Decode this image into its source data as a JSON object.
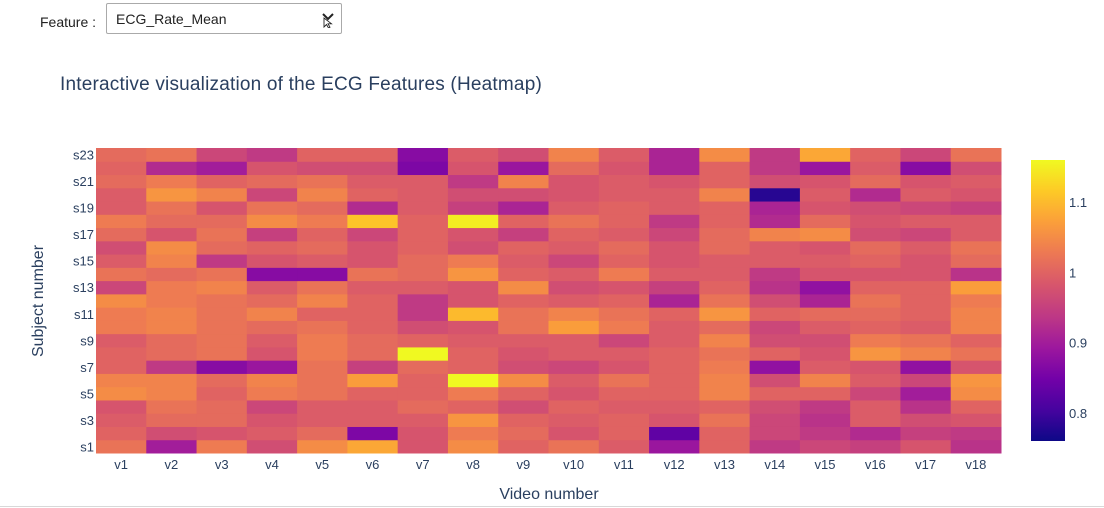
{
  "controls": {
    "feature_label": "Feature :",
    "feature_value": "ECG_Rate_Mean"
  },
  "chart_data": {
    "type": "heatmap",
    "title": "Interactive visualization of the ECG Features (Heatmap)",
    "xlabel": "Video number",
    "ylabel": "Subject number",
    "x": [
      "v1",
      "v2",
      "v3",
      "v4",
      "v5",
      "v6",
      "v7",
      "v8",
      "v9",
      "v10",
      "v11",
      "v12",
      "v13",
      "v14",
      "v15",
      "v16",
      "v17",
      "v18"
    ],
    "y": [
      "s1",
      "s2",
      "s3",
      "s4",
      "s5",
      "s6",
      "s7",
      "s8",
      "s9",
      "s10",
      "s11",
      "s12",
      "s13",
      "s14",
      "s15",
      "s16",
      "s17",
      "s18",
      "s19",
      "s20",
      "s21",
      "s22",
      "s23"
    ],
    "y_tick_labels": [
      "s1",
      "s3",
      "s5",
      "s7",
      "s9",
      "s11",
      "s13",
      "s15",
      "s17",
      "s19",
      "s21",
      "s23"
    ],
    "colorscale": "plasma",
    "zmin": 0.76,
    "zmax": 1.16,
    "colorbar_ticks": [
      0.8,
      0.9,
      1,
      1.1
    ],
    "colorbar_tick_labels": [
      "0.8",
      "0.9",
      "1",
      "1.1"
    ],
    "z": [
      [
        1.02,
        0.9,
        1.03,
        0.97,
        1.05,
        1.08,
        0.98,
        1.05,
        1.0,
        1.02,
        0.99,
        0.89,
        1.0,
        0.94,
        0.96,
        0.95,
        0.98,
        0.93
      ],
      [
        1.0,
        0.97,
        0.98,
        0.99,
        1.01,
        0.86,
        0.98,
        1.03,
        1.01,
        0.98,
        1.0,
        0.83,
        1.0,
        0.96,
        0.94,
        0.92,
        0.95,
        0.94
      ],
      [
        0.99,
        1.01,
        1.01,
        0.98,
        0.99,
        0.99,
        0.99,
        1.06,
        1.0,
        0.99,
        1.0,
        0.98,
        1.02,
        0.96,
        0.93,
        0.99,
        0.97,
        0.98
      ],
      [
        0.98,
        1.02,
        1.01,
        0.96,
        0.99,
        0.99,
        1.01,
        1.0,
        0.97,
        1.0,
        0.99,
        0.99,
        1.0,
        0.97,
        0.94,
        0.99,
        0.93,
        1.0
      ],
      [
        1.05,
        1.04,
        1.0,
        1.03,
        1.02,
        1.0,
        1.0,
        1.03,
        1.0,
        0.98,
        1.0,
        1.0,
        1.04,
        1.0,
        1.0,
        0.96,
        0.9,
        1.05
      ],
      [
        1.04,
        1.04,
        1.01,
        1.04,
        1.02,
        1.07,
        1.0,
        1.16,
        1.05,
        0.99,
        1.02,
        1.0,
        1.04,
        0.97,
        1.04,
        0.99,
        0.96,
        1.06
      ],
      [
        1.0,
        0.94,
        0.87,
        0.89,
        1.02,
        0.95,
        1.01,
        1.0,
        0.97,
        0.96,
        0.98,
        1.0,
        1.03,
        0.88,
        0.99,
        0.98,
        0.88,
        0.98
      ],
      [
        1.0,
        1.01,
        1.02,
        0.98,
        1.03,
        1.01,
        1.16,
        1.0,
        0.98,
        0.99,
        0.99,
        1.0,
        1.02,
        1.0,
        0.98,
        1.06,
        1.04,
        1.02
      ],
      [
        0.99,
        1.01,
        1.02,
        0.99,
        1.03,
        1.01,
        1.0,
        0.99,
        0.99,
        0.99,
        0.96,
        0.99,
        1.04,
        0.97,
        0.97,
        1.03,
        1.02,
        1.0
      ],
      [
        1.03,
        1.04,
        1.02,
        1.01,
        1.02,
        1.0,
        0.97,
        0.98,
        1.02,
        1.07,
        1.03,
        0.99,
        1.01,
        0.96,
        0.99,
        1.0,
        0.99,
        1.04
      ],
      [
        1.03,
        1.04,
        1.02,
        1.04,
        1.0,
        1.0,
        0.94,
        1.1,
        1.02,
        1.04,
        1.02,
        1.0,
        1.06,
        1.0,
        1.01,
        1.01,
        1.0,
        1.04
      ],
      [
        1.05,
        1.03,
        1.02,
        1.01,
        1.04,
        1.0,
        0.94,
        0.98,
        1.0,
        0.99,
        1.0,
        0.91,
        1.02,
        0.97,
        0.91,
        1.02,
        1.0,
        1.03
      ],
      [
        0.96,
        1.03,
        1.04,
        0.99,
        1.02,
        0.99,
        0.99,
        0.98,
        1.05,
        0.97,
        0.98,
        0.95,
        1.0,
        0.93,
        0.88,
        1.0,
        1.0,
        1.07
      ],
      [
        1.02,
        1.01,
        1.02,
        0.87,
        0.87,
        1.02,
        1.01,
        1.06,
        1.0,
        0.99,
        1.03,
        0.99,
        0.99,
        0.94,
        0.98,
        0.98,
        0.98,
        0.93
      ],
      [
        0.99,
        1.04,
        0.94,
        0.98,
        0.99,
        0.98,
        1.01,
        1.03,
        0.99,
        0.96,
        1.0,
        0.98,
        0.99,
        0.99,
        0.99,
        1.0,
        0.98,
        1.01
      ],
      [
        0.97,
        1.05,
        1.01,
        1.0,
        1.01,
        0.98,
        1.0,
        0.97,
        1.0,
        0.99,
        1.01,
        0.98,
        1.01,
        0.99,
        0.98,
        1.01,
        0.99,
        1.02
      ],
      [
        1.01,
        0.98,
        1.02,
        0.95,
        1.0,
        0.96,
        1.0,
        0.98,
        0.95,
        1.0,
        0.99,
        0.96,
        1.01,
        1.04,
        1.05,
        0.97,
        0.96,
        0.99
      ],
      [
        1.03,
        1.01,
        1.01,
        1.05,
        1.03,
        1.11,
        1.0,
        1.15,
        1.0,
        1.02,
        1.0,
        0.94,
        1.0,
        0.92,
        1.01,
        0.98,
        0.99,
        0.99
      ],
      [
        0.99,
        1.02,
        0.98,
        1.02,
        1.01,
        0.92,
        0.99,
        0.95,
        0.91,
        0.99,
        1.0,
        0.99,
        1.0,
        0.91,
        0.98,
        0.97,
        0.96,
        0.95
      ],
      [
        0.99,
        1.06,
        1.04,
        0.96,
        1.04,
        1.0,
        0.99,
        0.97,
        0.97,
        0.98,
        0.99,
        0.99,
        1.04,
        0.78,
        0.99,
        0.92,
        0.99,
        0.98
      ],
      [
        1.01,
        1.03,
        1.0,
        1.01,
        1.02,
        0.99,
        0.99,
        0.94,
        1.04,
        0.98,
        0.99,
        0.98,
        1.0,
        0.97,
        0.98,
        1.01,
        0.98,
        0.99
      ],
      [
        1.0,
        0.92,
        0.9,
        0.98,
        0.97,
        0.97,
        0.86,
        0.98,
        0.89,
        1.01,
        0.98,
        0.91,
        1.0,
        0.94,
        0.89,
        0.99,
        0.87,
        0.97
      ],
      [
        1.01,
        1.02,
        0.96,
        0.94,
        1.0,
        1.0,
        0.87,
        0.99,
        0.97,
        1.04,
        0.99,
        0.91,
        1.05,
        0.94,
        1.08,
        1.0,
        0.96,
        1.02
      ]
    ]
  }
}
